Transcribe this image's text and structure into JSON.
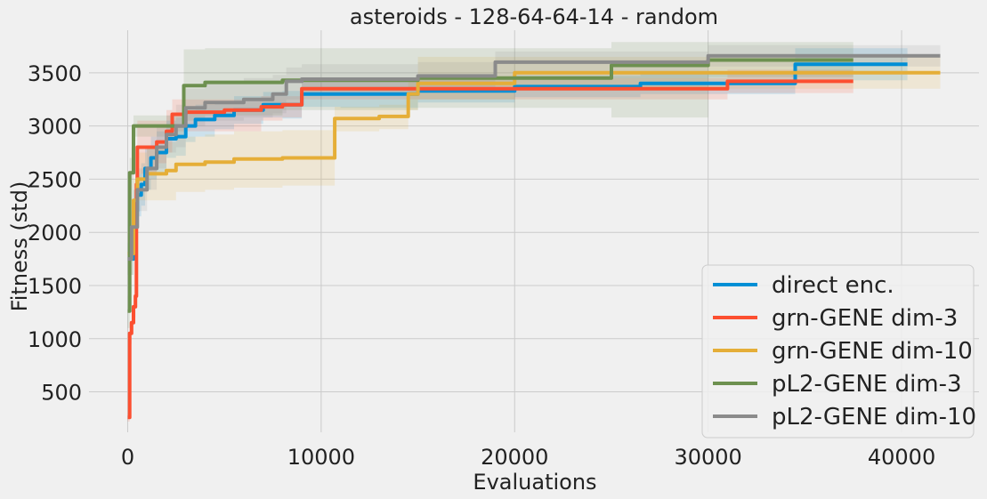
{
  "chart_data": {
    "type": "line",
    "title": "asteroids - 128-64-64-14 - random",
    "xlabel": "Evaluations",
    "ylabel": "Fitness (std)",
    "xlim": [
      -2000,
      44000
    ],
    "ylim": [
      120,
      3900
    ],
    "xticks": [
      0,
      10000,
      20000,
      30000,
      40000
    ],
    "yticks": [
      500,
      1000,
      1500,
      2000,
      2500,
      3000,
      3500
    ],
    "grid": true,
    "legend_position": "lower-right",
    "series": [
      {
        "name": "direct enc.",
        "color": "#008fd5",
        "x": [
          0,
          300,
          500,
          700,
          900,
          1200,
          1500,
          2000,
          2500,
          3000,
          3500,
          4500,
          5500,
          7000,
          8000,
          9000,
          11000,
          15000,
          20000,
          26500,
          34500,
          40300
        ],
        "y": [
          1750,
          2200,
          2350,
          2450,
          2600,
          2700,
          2750,
          2880,
          2900,
          3000,
          3060,
          3100,
          3150,
          3200,
          3200,
          3300,
          3300,
          3330,
          3370,
          3400,
          3580,
          3580
        ],
        "upper": [
          1900,
          2400,
          2550,
          2650,
          2800,
          2900,
          2950,
          3050,
          3080,
          3150,
          3200,
          3230,
          3280,
          3320,
          3330,
          3420,
          3430,
          3440,
          3470,
          3500,
          3730,
          3730
        ],
        "lower": [
          1600,
          2000,
          2150,
          2250,
          2400,
          2500,
          2550,
          2700,
          2720,
          2850,
          2900,
          2970,
          3020,
          3080,
          3070,
          3180,
          3170,
          3220,
          3270,
          3300,
          3430,
          3430
        ]
      },
      {
        "name": "grn-GENE dim-3",
        "color": "#fc4f30",
        "x": [
          0,
          100,
          200,
          300,
          400,
          450,
          500,
          1000,
          1500,
          2000,
          2300,
          3000,
          5000,
          6900,
          8000,
          9000,
          12000,
          20000,
          31000,
          37500
        ],
        "y": [
          260,
          1050,
          1150,
          1300,
          1400,
          2450,
          2800,
          2800,
          2850,
          2950,
          3110,
          3130,
          3150,
          3180,
          3200,
          3350,
          3350,
          3350,
          3420,
          3420
        ],
        "upper": [
          300,
          1150,
          1250,
          1400,
          1500,
          2700,
          3050,
          3050,
          3050,
          3150,
          3250,
          3250,
          3250,
          3280,
          3280,
          3450,
          3450,
          3450,
          3530,
          3530
        ],
        "lower": [
          220,
          950,
          1050,
          1200,
          1300,
          2200,
          2550,
          2550,
          2650,
          2750,
          2950,
          2950,
          2950,
          3050,
          3080,
          3250,
          3250,
          3250,
          3310,
          3310
        ]
      },
      {
        "name": "grn-GENE dim-10",
        "color": "#e5ae38",
        "x": [
          0,
          300,
          500,
          1000,
          2000,
          2500,
          4000,
          5500,
          8000,
          10600,
          10700,
          13000,
          14500,
          15000,
          20000,
          30000,
          42000
        ],
        "y": [
          1800,
          2300,
          2500,
          2550,
          2580,
          2640,
          2660,
          2690,
          2700,
          2700,
          3070,
          3090,
          3300,
          3400,
          3500,
          3500,
          3500
        ],
        "upper": [
          2000,
          2500,
          2750,
          2800,
          2850,
          2900,
          2920,
          2950,
          2960,
          2960,
          3180,
          3200,
          3450,
          3650,
          3650,
          3650,
          3650
        ],
        "lower": [
          1600,
          2100,
          2300,
          2300,
          2300,
          2380,
          2400,
          2420,
          2440,
          2440,
          2950,
          2970,
          3150,
          3250,
          3350,
          3350,
          3350
        ]
      },
      {
        "name": "pL2-GENE dim-3",
        "color": "#6d904f",
        "x": [
          0,
          100,
          200,
          300,
          2800,
          2900,
          4000,
          8000,
          15000,
          25000,
          30000,
          37500
        ],
        "y": [
          1260,
          2560,
          2560,
          3000,
          3000,
          3380,
          3410,
          3430,
          3450,
          3570,
          3620,
          3620
        ],
        "upper": [
          1400,
          2700,
          2800,
          3100,
          3100,
          3720,
          3730,
          3730,
          3730,
          3790,
          3790,
          3790
        ],
        "lower": [
          1100,
          2400,
          2300,
          2900,
          2900,
          3050,
          3100,
          3150,
          3170,
          3080,
          3460,
          3460
        ]
      },
      {
        "name": "pL2-GENE dim-10",
        "color": "#8b8b8b",
        "x": [
          0,
          200,
          500,
          1000,
          1500,
          2000,
          2500,
          3000,
          4000,
          6000,
          7500,
          8200,
          9000,
          15000,
          19000,
          30000,
          42000
        ],
        "y": [
          1750,
          2050,
          2400,
          2600,
          2800,
          2920,
          3000,
          3170,
          3220,
          3250,
          3300,
          3420,
          3440,
          3470,
          3600,
          3660,
          3660
        ],
        "upper": [
          1900,
          2200,
          2600,
          2800,
          3000,
          3100,
          3200,
          3350,
          3400,
          3450,
          3480,
          3550,
          3580,
          3600,
          3700,
          3760,
          3760
        ],
        "lower": [
          1600,
          1900,
          2200,
          2400,
          2600,
          2750,
          2800,
          3000,
          3050,
          3080,
          3120,
          3250,
          3300,
          3330,
          3450,
          3560,
          3560
        ]
      }
    ]
  }
}
